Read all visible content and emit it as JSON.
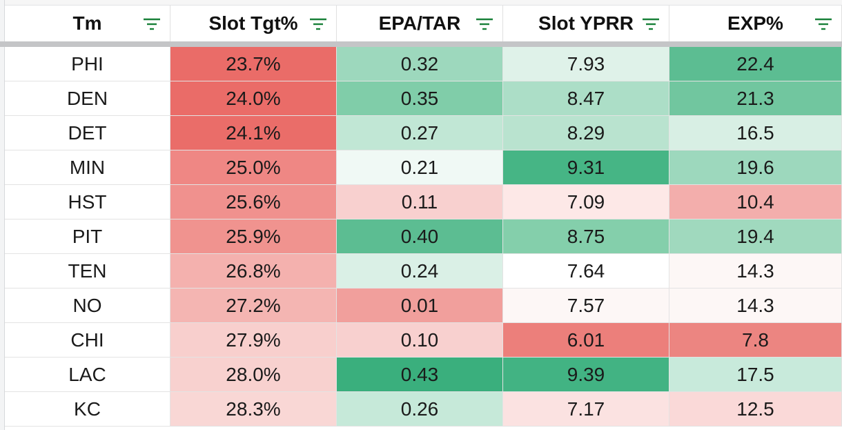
{
  "columns": [
    "Tm",
    "Slot Tgt%",
    "EPA/TAR",
    "Slot YPRR",
    "EXP%"
  ],
  "filter_icon": "filter-icon",
  "rows": [
    {
      "cells": [
        "PHI",
        "23.7%",
        "0.32",
        "7.93",
        "22.4"
      ],
      "colors": [
        "#ffffff",
        "#ea6c68",
        "#9dd8bd",
        "#dff2e9",
        "#5cbd92"
      ]
    },
    {
      "cells": [
        "DEN",
        "24.0%",
        "0.35",
        "8.47",
        "21.3"
      ],
      "colors": [
        "#ffffff",
        "#ea6c68",
        "#80cda9",
        "#acdec7",
        "#71c69f"
      ]
    },
    {
      "cells": [
        "DET",
        "24.1%",
        "0.27",
        "8.29",
        "16.5"
      ],
      "colors": [
        "#ffffff",
        "#ea6d69",
        "#c1e7d5",
        "#b9e3cf",
        "#d8efe4"
      ]
    },
    {
      "cells": [
        "MIN",
        "25.0%",
        "0.21",
        "9.31",
        "19.6"
      ],
      "colors": [
        "#ffffff",
        "#ef8784",
        "#f0f9f5",
        "#46b585",
        "#9dd8bd"
      ]
    },
    {
      "cells": [
        "HST",
        "25.6%",
        "0.11",
        "7.09",
        "10.4"
      ],
      "colors": [
        "#ffffff",
        "#f0918e",
        "#f8d0cf",
        "#fde8e7",
        "#f3aeac"
      ]
    },
    {
      "cells": [
        "PIT",
        "25.9%",
        "0.40",
        "8.75",
        "19.4"
      ],
      "colors": [
        "#ffffff",
        "#f0938f",
        "#5cbd92",
        "#84cfab",
        "#a0d9be"
      ]
    },
    {
      "cells": [
        "TEN",
        "26.8%",
        "0.24",
        "7.64",
        "14.3"
      ],
      "colors": [
        "#ffffff",
        "#f4b1ae",
        "#daf0e6",
        "#ffffff",
        "#fdf7f6"
      ]
    },
    {
      "cells": [
        "NO",
        "27.2%",
        "0.01",
        "7.57",
        "14.3"
      ],
      "colors": [
        "#ffffff",
        "#f4b5b2",
        "#f19f9c",
        "#fdf7f6",
        "#fdf7f6"
      ]
    },
    {
      "cells": [
        "CHI",
        "27.9%",
        "0.10",
        "6.01",
        "7.8"
      ],
      "colors": [
        "#ffffff",
        "#f8cfcd",
        "#f8d0cf",
        "#ec7f7b",
        "#ec8581"
      ]
    },
    {
      "cells": [
        "LAC",
        "28.0%",
        "0.43",
        "9.39",
        "17.5"
      ],
      "colors": [
        "#ffffff",
        "#f8d1cf",
        "#3aaf7d",
        "#42b383",
        "#c8eadb"
      ]
    },
    {
      "cells": [
        "KC",
        "28.3%",
        "0.26",
        "7.17",
        "12.5"
      ],
      "colors": [
        "#ffffff",
        "#f9d7d5",
        "#c6e9d9",
        "#fbe2e1",
        "#fad9d8"
      ]
    }
  ]
}
